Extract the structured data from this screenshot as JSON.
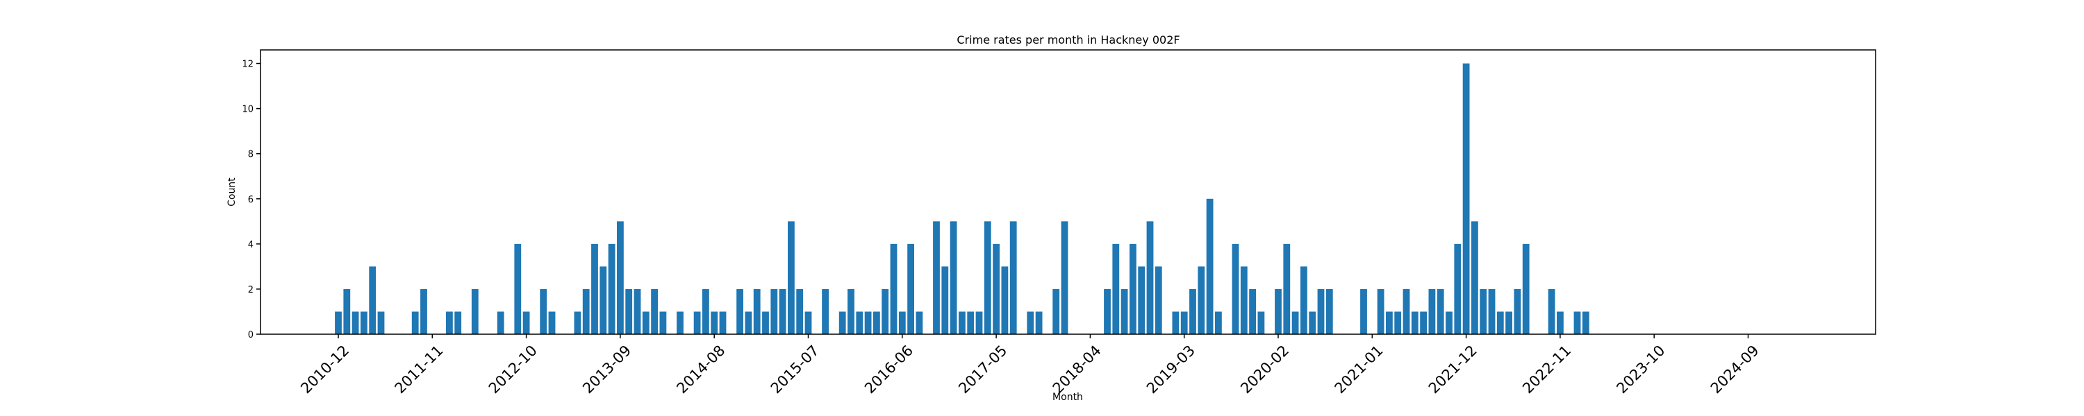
{
  "chart_data": {
    "type": "bar",
    "title": "Crime rates per month in Hackney 002F",
    "xlabel": "Month",
    "ylabel": "Count",
    "ylim": [
      0,
      12.6
    ],
    "yticks": [
      0,
      2,
      4,
      6,
      8,
      10,
      12
    ],
    "xtick_labels": [
      "2010-12",
      "2011-11",
      "2012-10",
      "2013-09",
      "2014-08",
      "2015-07",
      "2016-06",
      "2017-05",
      "2018-04",
      "2019-03",
      "2020-02",
      "2021-01",
      "2021-12",
      "2022-11",
      "2023-10",
      "2024-09"
    ],
    "color": "#1f77b4",
    "grid": false,
    "series": [
      {
        "x": [
          "2010-12",
          "2011-01",
          "2011-02",
          "2011-03",
          "2011-04",
          "2011-05",
          "2011-09",
          "2011-10",
          "2012-01",
          "2012-02",
          "2012-04",
          "2012-07",
          "2012-09",
          "2012-10",
          "2012-12",
          "2013-01",
          "2013-04",
          "2013-05",
          "2013-06",
          "2013-07",
          "2013-08",
          "2013-09",
          "2013-10",
          "2013-11",
          "2013-12",
          "2014-01",
          "2014-02",
          "2014-04",
          "2014-06",
          "2014-07",
          "2014-08",
          "2014-09",
          "2014-11",
          "2014-12",
          "2015-01",
          "2015-02",
          "2015-03",
          "2015-04",
          "2015-05",
          "2015-06",
          "2015-07",
          "2015-09",
          "2015-11",
          "2015-12",
          "2016-01",
          "2016-02",
          "2016-03",
          "2016-04",
          "2016-05",
          "2016-06",
          "2016-07",
          "2016-08",
          "2016-10",
          "2016-11",
          "2016-12",
          "2017-01",
          "2017-02",
          "2017-03",
          "2017-04",
          "2017-05",
          "2017-06",
          "2017-07",
          "2017-09",
          "2017-10",
          "2017-12",
          "2018-01",
          "2018-06",
          "2018-07",
          "2018-08",
          "2018-09",
          "2018-10",
          "2018-11",
          "2018-12",
          "2019-02",
          "2019-03",
          "2019-04",
          "2019-05",
          "2019-06",
          "2019-07",
          "2019-09",
          "2019-10",
          "2019-11",
          "2019-12",
          "2020-02",
          "2020-03",
          "2020-04",
          "2020-05",
          "2020-06",
          "2020-07",
          "2020-08",
          "2020-12",
          "2021-02",
          "2021-03",
          "2021-04",
          "2021-05",
          "2021-06",
          "2021-07",
          "2021-08",
          "2021-09",
          "2021-10",
          "2021-11",
          "2021-12",
          "2022-01",
          "2022-02",
          "2022-03",
          "2022-04",
          "2022-05",
          "2022-06",
          "2022-07",
          "2022-10",
          "2022-11",
          "2023-01",
          "2023-02"
        ],
        "values": [
          1,
          2,
          1,
          1,
          3,
          1,
          1,
          2,
          1,
          1,
          2,
          1,
          4,
          1,
          2,
          1,
          1,
          2,
          4,
          3,
          4,
          5,
          2,
          2,
          1,
          2,
          1,
          1,
          1,
          2,
          1,
          1,
          2,
          1,
          2,
          1,
          2,
          2,
          5,
          2,
          1,
          2,
          1,
          2,
          1,
          1,
          1,
          2,
          4,
          1,
          4,
          1,
          5,
          3,
          5,
          1,
          1,
          1,
          5,
          4,
          3,
          5,
          1,
          1,
          2,
          5,
          2,
          4,
          2,
          4,
          3,
          5,
          3,
          1,
          1,
          2,
          3,
          6,
          1,
          4,
          3,
          2,
          1,
          2,
          4,
          1,
          3,
          1,
          2,
          2,
          2,
          2,
          1,
          1,
          2,
          1,
          1,
          2,
          2,
          1,
          4,
          12,
          5,
          2,
          2,
          1,
          1,
          2,
          4,
          2,
          1,
          1,
          1
        ]
      }
    ]
  }
}
